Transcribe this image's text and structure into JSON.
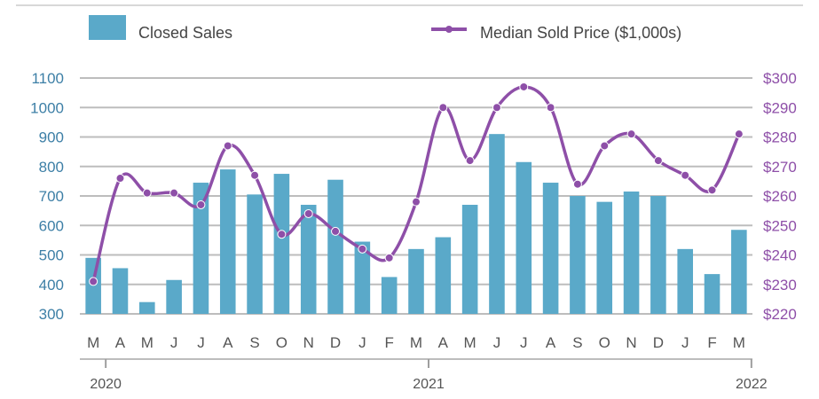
{
  "chart_data": {
    "type": "bar",
    "categories": [
      "M",
      "A",
      "M",
      "J",
      "J",
      "A",
      "S",
      "O",
      "N",
      "D",
      "J",
      "F",
      "M",
      "A",
      "M",
      "J",
      "J",
      "A",
      "S",
      "O",
      "N",
      "D",
      "J",
      "F",
      "M"
    ],
    "years": [
      "2020",
      "2021",
      "2022"
    ],
    "series": [
      {
        "name": "Closed Sales",
        "type": "bar",
        "axis": "left",
        "color": "#5aa9c9",
        "values": [
          490,
          455,
          340,
          415,
          745,
          790,
          705,
          775,
          670,
          755,
          545,
          425,
          520,
          560,
          670,
          910,
          815,
          745,
          700,
          680,
          715,
          700,
          520,
          435,
          585
        ]
      },
      {
        "name": "Median Sold Price ($1,000s)",
        "type": "line",
        "axis": "right",
        "color": "#8e4fa8",
        "values": [
          231,
          266,
          261,
          261,
          257,
          277,
          267,
          247,
          254,
          248,
          242,
          239,
          258,
          290,
          272,
          290,
          297,
          290,
          264,
          277,
          281,
          272,
          267,
          262,
          281
        ]
      }
    ],
    "left_axis": {
      "ylim": [
        300,
        1100
      ],
      "ticks": [
        "1100",
        "1000",
        "900",
        "800",
        "700",
        "600",
        "500",
        "400",
        "300"
      ],
      "color": "#3d7fa6"
    },
    "right_axis": {
      "ylim": [
        220,
        300
      ],
      "ticks": [
        "$300",
        "$290",
        "$280",
        "$270",
        "$260",
        "$250",
        "$240",
        "$230",
        "$220"
      ],
      "color": "#8e4fa8"
    },
    "grid": true,
    "legend": "top"
  }
}
